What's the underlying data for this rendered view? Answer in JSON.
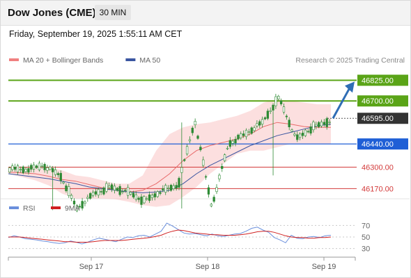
{
  "header": {
    "title": "Dow Jones (CME)",
    "timeframe": "30 MIN"
  },
  "datetime": "Friday, September 19, 2025 1:55:11 AM CET",
  "colors": {
    "green": "#5aa417",
    "blue": "#1f5fd6",
    "red": "#d33a3a",
    "arrow": "#2f6db5",
    "current": "#333333",
    "bb": "#f9c5c5",
    "ma20": "#e86a6a",
    "ma50": "#3a55a0",
    "rsi": "#6a8fdc",
    "rsi_ma": "#d02020",
    "candle": "#2d8a34"
  },
  "legend_price": [
    {
      "label": "MA 20 + Bollinger Bands",
      "color": "#f08080"
    },
    {
      "label": "MA 50",
      "color": "#3a55a0"
    }
  ],
  "watermark": "Research © 2025 Trading Central",
  "legend_rsi": [
    {
      "label": "RSI",
      "color": "#6a8fdc"
    },
    {
      "label": "9MA",
      "color": "#d02020"
    }
  ],
  "chart_data": [
    {
      "type": "candlestick",
      "ylim": [
        46050,
        46890
      ],
      "levels": [
        {
          "value": 46825,
          "label": "46825.00",
          "kind": "resistance"
        },
        {
          "value": 46700,
          "label": "46700.00",
          "kind": "resistance"
        },
        {
          "value": 46595,
          "label": "46595.00",
          "kind": "current"
        },
        {
          "value": 46440,
          "label": "46440.00",
          "kind": "pivot"
        },
        {
          "value": 46300,
          "label": "46300.00",
          "kind": "support"
        },
        {
          "value": 46170,
          "label": "46170.00",
          "kind": "support"
        }
      ],
      "x_labels": [
        "Sep 17",
        "Sep 18",
        "Sep 19"
      ],
      "key_prices": [
        [
          46290,
          46300,
          46290,
          46290
        ],
        [
          46285,
          46280,
          46305,
          46295
        ],
        [
          46310,
          46305,
          46280,
          46270
        ],
        [
          46250,
          46260,
          46230,
          46210
        ],
        [
          46050,
          46110,
          46060,
          46110
        ],
        [
          46140,
          46170,
          46145,
          46160
        ],
        [
          46180,
          46195,
          46170,
          46175
        ],
        [
          46150,
          46140,
          46125,
          46120
        ],
        [
          46095,
          46110,
          46120,
          46140
        ],
        [
          46155,
          46130,
          46140,
          46145
        ],
        [
          46190,
          46260,
          46440,
          46460
        ],
        [
          46580,
          46460,
          46560,
          46200
        ],
        [
          46060,
          46340,
          46390,
          46420
        ],
        [
          46440,
          46430,
          46470,
          46480
        ],
        [
          46500,
          46470,
          46510,
          46540
        ],
        [
          46570,
          46625,
          46700,
          46690
        ],
        [
          46720,
          46695,
          46620,
          46560
        ],
        [
          46470,
          46360,
          46380,
          46480
        ],
        [
          46540,
          46500,
          46510,
          46530
        ],
        [
          46580,
          46570,
          46560,
          46590
        ]
      ],
      "ma50": [
        46260,
        46250,
        46240,
        46230,
        46215,
        46200,
        46180,
        46170,
        46160,
        46150,
        46145,
        46150,
        46160,
        46200,
        46260,
        46310,
        46350,
        46390,
        46430,
        46460,
        46490,
        46510,
        46530,
        46550,
        46560
      ],
      "ma20": [
        46270,
        46265,
        46260,
        46245,
        46225,
        46215,
        46195,
        46175,
        46160,
        46150,
        46160,
        46200,
        46260,
        46340,
        46400,
        46430,
        46450,
        46470,
        46500,
        46545,
        46570,
        46560,
        46545,
        46540,
        46540
      ],
      "bb_upper": [
        46300,
        46300,
        46300,
        46300,
        46280,
        46250,
        46240,
        46220,
        46200,
        46200,
        46250,
        46400,
        46500,
        46540,
        46560,
        46570,
        46590,
        46610,
        46640,
        46690,
        46710,
        46700,
        46690,
        46680,
        46680
      ],
      "bb_lower": [
        46260,
        46240,
        46220,
        46190,
        46140,
        46110,
        46110,
        46110,
        46105,
        46090,
        46070,
        46060,
        46070,
        46120,
        46180,
        46260,
        46320,
        46380,
        46400,
        46400,
        46420,
        46440,
        46440,
        46440,
        46440
      ]
    },
    {
      "type": "line",
      "ylim": [
        20,
        80
      ],
      "ticks": [
        70,
        50,
        30
      ],
      "rsi": [
        49,
        52,
        50,
        47,
        46,
        45,
        43,
        42,
        40,
        39,
        40,
        43,
        41,
        38,
        41,
        45,
        48,
        46,
        44,
        42,
        46,
        50,
        49,
        52,
        53,
        50,
        55,
        60,
        74,
        69,
        63,
        57,
        55,
        56,
        54,
        52,
        55,
        52,
        51,
        53,
        55,
        56,
        60,
        65,
        67,
        62,
        58,
        49,
        45,
        40,
        53,
        48,
        47,
        50,
        51,
        49,
        52,
        53
      ],
      "rsi_ma": [
        50,
        50,
        50,
        49,
        48,
        47,
        46,
        45,
        44,
        43,
        42,
        42,
        41,
        41,
        41,
        42,
        43,
        44,
        44,
        44,
        44,
        45,
        46,
        47,
        48,
        49,
        51,
        53,
        57,
        60,
        62,
        61,
        59,
        57,
        56,
        55,
        54,
        54,
        53,
        53,
        53,
        54,
        55,
        57,
        59,
        60,
        60,
        58,
        55,
        52,
        50,
        49,
        49,
        48,
        48,
        49,
        49,
        50
      ]
    }
  ]
}
